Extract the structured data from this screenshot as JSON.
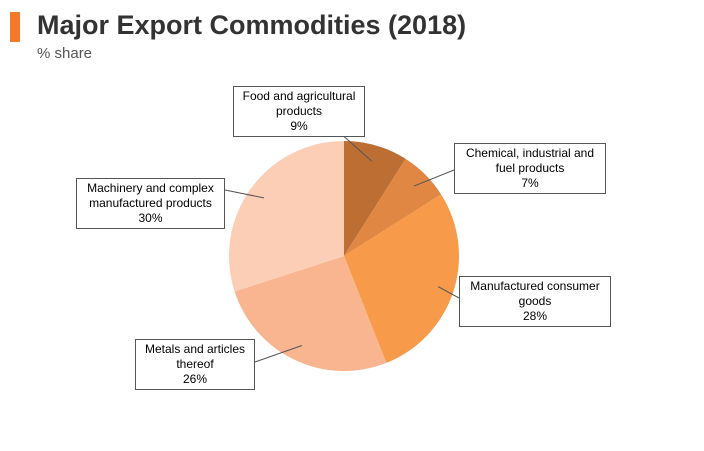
{
  "header": {
    "title": "Major Export Commodities (2018)",
    "subtitle": "% share",
    "accent_color": "#f07c2a"
  },
  "chart_data": {
    "type": "pie",
    "title": "Major Export Commodities (2018)",
    "subtitle": "% share",
    "start_angle_deg": 0,
    "direction": "clockwise",
    "slices": [
      {
        "label": "Food and agricultural products",
        "value": 9,
        "value_label": "9%",
        "color": "#bd6f33"
      },
      {
        "label": "Chemical, industrial and fuel products",
        "value": 7,
        "value_label": "7%",
        "color": "#e08843"
      },
      {
        "label": "Manufactured consumer goods",
        "value": 28,
        "value_label": "28%",
        "color": "#f79a4a"
      },
      {
        "label": "Metals and articles thereof",
        "value": 26,
        "value_label": "26%",
        "color": "#f9b590"
      },
      {
        "label": "Machinery and complex manufactured products",
        "value": 30,
        "value_label": "30%",
        "color": "#fbceb5"
      }
    ]
  },
  "labels": [
    {
      "lines": [
        "Food and agricultural",
        "products"
      ],
      "pct": "9%"
    },
    {
      "lines": [
        "Chemical, industrial and",
        "fuel products"
      ],
      "pct": "7%"
    },
    {
      "lines": [
        "Manufactured consumer",
        "goods"
      ],
      "pct": "28%"
    },
    {
      "lines": [
        "Metals and articles",
        "thereof"
      ],
      "pct": "26%"
    },
    {
      "lines": [
        "Machinery and complex",
        "manufactured products"
      ],
      "pct": "30%"
    }
  ]
}
